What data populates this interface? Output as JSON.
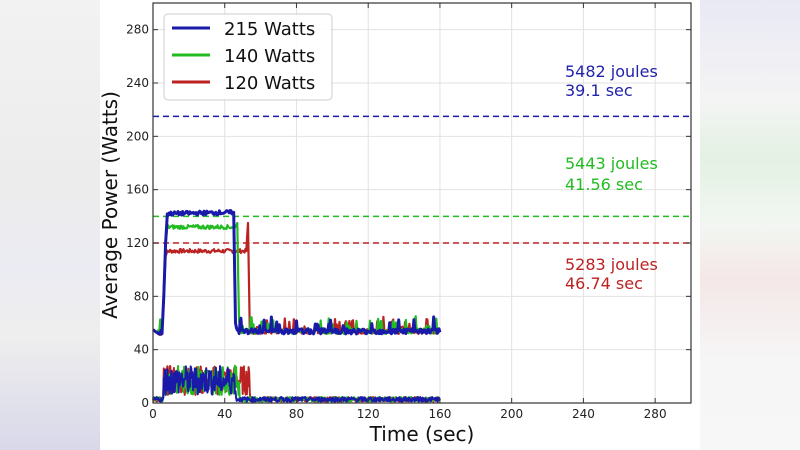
{
  "chart_data": {
    "type": "line",
    "title": "",
    "xlabel": "Time (sec)",
    "ylabel": "Average Power (Watts)",
    "xlim": [
      0,
      300
    ],
    "ylim": [
      0,
      300
    ],
    "xticks": [
      0,
      40,
      80,
      120,
      160,
      200,
      240,
      280
    ],
    "yticks": [
      0,
      40,
      80,
      120,
      160,
      200,
      240,
      280
    ],
    "grid": true,
    "legend_position": "upper left",
    "series": [
      {
        "name": "215 Watts",
        "color": "#1a1aaa",
        "power_cap_watts": 215,
        "upper_trace": {
          "x": [
            0,
            3,
            5,
            6,
            7,
            8,
            45,
            46,
            47,
            160
          ],
          "y": [
            55,
            52,
            52,
            80,
            120,
            142,
            143,
            60,
            53,
            53
          ]
        },
        "lower_trace": {
          "x": [
            0,
            5,
            7,
            45,
            47,
            160
          ],
          "y": [
            2,
            3,
            20,
            22,
            3,
            2
          ]
        },
        "cap_line_y": 215,
        "annotation": {
          "energy": "5482 joules",
          "time": "39.1 sec"
        }
      },
      {
        "name": "140 Watts",
        "color": "#22bb22",
        "power_cap_watts": 140,
        "upper_trace": {
          "x": [
            0,
            3,
            5,
            7,
            8,
            46,
            47,
            48,
            160
          ],
          "y": [
            55,
            52,
            52,
            120,
            132,
            132,
            135,
            53,
            53
          ]
        },
        "lower_trace": {
          "x": [
            0,
            5,
            7,
            47,
            49,
            160
          ],
          "y": [
            2,
            3,
            20,
            22,
            3,
            2
          ]
        },
        "cap_line_y": 140,
        "annotation": {
          "energy": "5443 joules",
          "time": "41.56 sec"
        }
      },
      {
        "name": "120 Watts",
        "color": "#bb2222",
        "power_cap_watts": 120,
        "upper_trace": {
          "x": [
            0,
            3,
            5,
            7,
            8,
            52,
            53,
            54,
            160
          ],
          "y": [
            55,
            52,
            52,
            110,
            114,
            114,
            135,
            53,
            53
          ]
        },
        "lower_trace": {
          "x": [
            0,
            5,
            7,
            53,
            55,
            160
          ],
          "y": [
            2,
            3,
            20,
            20,
            3,
            2
          ]
        },
        "cap_line_y": 120,
        "annotation": {
          "energy": "5283 joules",
          "time": "46.74 sec"
        }
      }
    ]
  },
  "legend": {
    "items": [
      {
        "label": "215 Watts",
        "color": "#1a1aaa"
      },
      {
        "label": "140 Watts",
        "color": "#22bb22"
      },
      {
        "label": "120 Watts",
        "color": "#bb2222"
      }
    ]
  },
  "annotations": {
    "a215": {
      "energy": "5482 joules",
      "time": "39.1 sec",
      "color": "#2222aa"
    },
    "a140": {
      "energy": "5443 joules",
      "time": "41.56 sec",
      "color": "#22bb22"
    },
    "a120": {
      "energy": "5283 joules",
      "time": "46.74 sec",
      "color": "#bb2222"
    }
  },
  "axes": {
    "xlabel": "Time (sec)",
    "ylabel": "Average Power (Watts)",
    "xtick_labels": [
      "0",
      "40",
      "80",
      "120",
      "160",
      "200",
      "240",
      "280"
    ],
    "ytick_labels": [
      "0",
      "40",
      "80",
      "120",
      "160",
      "200",
      "240",
      "280"
    ]
  }
}
